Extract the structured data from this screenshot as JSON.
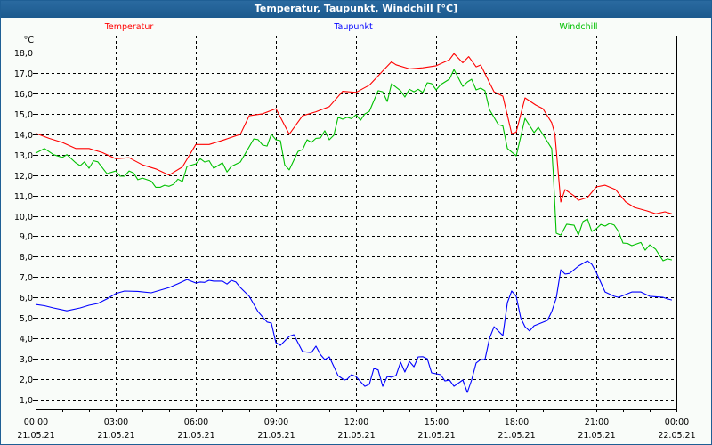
{
  "window": {
    "title": "Temperatur, Taupunkt, Windchill [°C]"
  },
  "chart_data": {
    "type": "line",
    "title": "Temperatur, Taupunkt, Windchill [°C]",
    "ylabel": "°C",
    "xlabel": "",
    "ylim": [
      0.52,
      18.83
    ],
    "xlim_hours": [
      0,
      24
    ],
    "grid": true,
    "legend_placement": "top",
    "y_ticks": [
      1,
      2,
      3,
      4,
      5,
      6,
      7,
      8,
      9,
      10,
      11,
      12,
      13,
      14,
      15,
      16,
      17,
      18
    ],
    "y_tick_labels": [
      "1,0",
      "2,0",
      "3,0",
      "4,0",
      "5,0",
      "6,0",
      "7,0",
      "8,0",
      "9,0",
      "10,0",
      "11,0",
      "12,0",
      "13,0",
      "14,0",
      "15,0",
      "16,0",
      "17,0",
      "18,0"
    ],
    "x_ticks": [
      {
        "hour": 0,
        "time": "00:00",
        "date": "21.05.21"
      },
      {
        "hour": 3,
        "time": "03:00",
        "date": "21.05.21"
      },
      {
        "hour": 6,
        "time": "06:00",
        "date": "21.05.21"
      },
      {
        "hour": 9,
        "time": "09:00",
        "date": "21.05.21"
      },
      {
        "hour": 12,
        "time": "12:00",
        "date": "21.05.21"
      },
      {
        "hour": 15,
        "time": "15:00",
        "date": "21.05.21"
      },
      {
        "hour": 18,
        "time": "18:00",
        "date": "21.05.21"
      },
      {
        "hour": 21,
        "time": "21:00",
        "date": "21.05.21"
      },
      {
        "hour": 24,
        "time": "00:00",
        "date": "22.05.21"
      }
    ],
    "series": [
      {
        "name": "Temperatur",
        "color": "#ff0000",
        "points": [
          [
            0,
            14.05
          ],
          [
            0.5,
            13.8
          ],
          [
            1,
            13.6
          ],
          [
            1.5,
            13.3
          ],
          [
            2,
            13.3
          ],
          [
            2.5,
            13.1
          ],
          [
            3,
            12.8
          ],
          [
            3.5,
            12.85
          ],
          [
            4,
            12.5
          ],
          [
            4.5,
            12.3
          ],
          [
            5,
            12.0
          ],
          [
            5.5,
            12.4
          ],
          [
            6,
            13.5
          ],
          [
            6.5,
            13.5
          ],
          [
            7,
            13.7
          ],
          [
            7.67,
            14.0
          ],
          [
            8,
            14.9
          ],
          [
            8.5,
            15.0
          ],
          [
            9,
            15.25
          ],
          [
            9.5,
            14.0
          ],
          [
            10,
            14.9
          ],
          [
            10.5,
            15.1
          ],
          [
            11,
            15.35
          ],
          [
            11.5,
            16.1
          ],
          [
            12,
            16.05
          ],
          [
            12.5,
            16.4
          ],
          [
            13,
            17.1
          ],
          [
            13.33,
            17.55
          ],
          [
            13.5,
            17.4
          ],
          [
            14,
            17.2
          ],
          [
            14.5,
            17.25
          ],
          [
            15,
            17.35
          ],
          [
            15.5,
            17.65
          ],
          [
            15.67,
            17.95
          ],
          [
            16,
            17.5
          ],
          [
            16.22,
            17.8
          ],
          [
            16.5,
            17.3
          ],
          [
            16.67,
            17.39
          ],
          [
            17.17,
            16.08
          ],
          [
            17.5,
            15.86
          ],
          [
            17.83,
            14.03
          ],
          [
            18,
            14.1
          ],
          [
            18.33,
            15.78
          ],
          [
            18.73,
            15.43
          ],
          [
            19,
            15.25
          ],
          [
            19.33,
            14.56
          ],
          [
            19.45,
            14.0
          ],
          [
            19.67,
            10.68
          ],
          [
            19.83,
            11.29
          ],
          [
            20.17,
            10.98
          ],
          [
            20.33,
            10.76
          ],
          [
            20.67,
            10.9
          ],
          [
            21,
            11.42
          ],
          [
            21.33,
            11.5
          ],
          [
            21.72,
            11.29
          ],
          [
            22.1,
            10.68
          ],
          [
            22.43,
            10.41
          ],
          [
            22.9,
            10.24
          ],
          [
            23.23,
            10.1
          ],
          [
            23.57,
            10.2
          ],
          [
            23.83,
            10.1
          ]
        ]
      },
      {
        "name": "Taupunkt",
        "color": "#0000ff",
        "points": [
          [
            0,
            5.66
          ],
          [
            0.33,
            5.6
          ],
          [
            0.67,
            5.49
          ],
          [
            1.17,
            5.35
          ],
          [
            1.67,
            5.49
          ],
          [
            2,
            5.62
          ],
          [
            2.33,
            5.71
          ],
          [
            2.67,
            5.93
          ],
          [
            3,
            6.19
          ],
          [
            3.33,
            6.32
          ],
          [
            3.83,
            6.3
          ],
          [
            4.33,
            6.23
          ],
          [
            4.67,
            6.36
          ],
          [
            5,
            6.49
          ],
          [
            5.33,
            6.67
          ],
          [
            5.67,
            6.88
          ],
          [
            6,
            6.71
          ],
          [
            6.17,
            6.76
          ],
          [
            6.33,
            6.74
          ],
          [
            6.5,
            6.84
          ],
          [
            6.67,
            6.8
          ],
          [
            7,
            6.8
          ],
          [
            7.17,
            6.66
          ],
          [
            7.33,
            6.84
          ],
          [
            7.5,
            6.76
          ],
          [
            7.67,
            6.49
          ],
          [
            8,
            6.06
          ],
          [
            8.33,
            5.31
          ],
          [
            8.67,
            4.8
          ],
          [
            8.83,
            4.75
          ],
          [
            9,
            3.79
          ],
          [
            9.17,
            3.66
          ],
          [
            9.5,
            4.1
          ],
          [
            9.67,
            4.18
          ],
          [
            10,
            3.35
          ],
          [
            10.33,
            3.3
          ],
          [
            10.5,
            3.62
          ],
          [
            10.67,
            3.2
          ],
          [
            10.83,
            2.96
          ],
          [
            11,
            3.09
          ],
          [
            11.33,
            2.17
          ],
          [
            11.56,
            1.96
          ],
          [
            11.67,
            2.0
          ],
          [
            11.83,
            2.22
          ],
          [
            12,
            2.13
          ],
          [
            12.33,
            1.65
          ],
          [
            12.5,
            1.75
          ],
          [
            12.67,
            2.53
          ],
          [
            12.83,
            2.45
          ],
          [
            13,
            1.65
          ],
          [
            13.17,
            2.13
          ],
          [
            13.33,
            2.1
          ],
          [
            13.5,
            2.18
          ],
          [
            13.67,
            2.83
          ],
          [
            13.83,
            2.35
          ],
          [
            14,
            2.87
          ],
          [
            14.17,
            2.61
          ],
          [
            14.33,
            3.09
          ],
          [
            14.5,
            3.1
          ],
          [
            14.67,
            3.0
          ],
          [
            14.83,
            2.31
          ],
          [
            15.17,
            2.22
          ],
          [
            15.33,
            1.91
          ],
          [
            15.5,
            1.96
          ],
          [
            15.67,
            1.65
          ],
          [
            16,
            1.96
          ],
          [
            16.17,
            1.35
          ],
          [
            16.33,
            1.96
          ],
          [
            16.5,
            2.79
          ],
          [
            16.67,
            2.96
          ],
          [
            16.83,
            2.96
          ],
          [
            17,
            4.0
          ],
          [
            17.17,
            4.57
          ],
          [
            17.5,
            4.14
          ],
          [
            17.67,
            5.75
          ],
          [
            17.83,
            6.32
          ],
          [
            18,
            6.06
          ],
          [
            18.17,
            5.0
          ],
          [
            18.33,
            4.57
          ],
          [
            18.5,
            4.36
          ],
          [
            18.67,
            4.62
          ],
          [
            18.83,
            4.7
          ],
          [
            19.17,
            4.88
          ],
          [
            19.33,
            5.31
          ],
          [
            19.5,
            5.97
          ],
          [
            19.67,
            7.36
          ],
          [
            19.83,
            7.15
          ],
          [
            20,
            7.18
          ],
          [
            20.33,
            7.54
          ],
          [
            20.67,
            7.8
          ],
          [
            20.83,
            7.63
          ],
          [
            21,
            7.23
          ],
          [
            21.33,
            6.27
          ],
          [
            21.67,
            6.06
          ],
          [
            21.83,
            6.01
          ],
          [
            22.33,
            6.27
          ],
          [
            22.67,
            6.27
          ],
          [
            23,
            6.06
          ],
          [
            23.5,
            6.01
          ],
          [
            23.67,
            5.93
          ],
          [
            23.83,
            5.88
          ]
        ]
      },
      {
        "name": "Windchill",
        "color": "#00c000",
        "points": [
          [
            0,
            13.07
          ],
          [
            0.33,
            13.3
          ],
          [
            0.67,
            13.0
          ],
          [
            1,
            12.86
          ],
          [
            1.17,
            13.0
          ],
          [
            1.5,
            12.6
          ],
          [
            1.67,
            12.46
          ],
          [
            1.83,
            12.65
          ],
          [
            2,
            12.33
          ],
          [
            2.17,
            12.7
          ],
          [
            2.33,
            12.65
          ],
          [
            2.67,
            12.07
          ],
          [
            3,
            12.2
          ],
          [
            3.17,
            11.94
          ],
          [
            3.33,
            11.94
          ],
          [
            3.5,
            12.2
          ],
          [
            3.67,
            12.1
          ],
          [
            3.83,
            11.77
          ],
          [
            4,
            11.85
          ],
          [
            4.33,
            11.7
          ],
          [
            4.5,
            11.4
          ],
          [
            4.67,
            11.4
          ],
          [
            4.83,
            11.5
          ],
          [
            5,
            11.45
          ],
          [
            5.17,
            11.55
          ],
          [
            5.33,
            11.8
          ],
          [
            5.5,
            11.68
          ],
          [
            5.67,
            12.42
          ],
          [
            6,
            12.55
          ],
          [
            6.17,
            12.8
          ],
          [
            6.33,
            12.64
          ],
          [
            6.5,
            12.7
          ],
          [
            6.67,
            12.33
          ],
          [
            7,
            12.6
          ],
          [
            7.17,
            12.15
          ],
          [
            7.33,
            12.42
          ],
          [
            7.67,
            12.64
          ],
          [
            7.83,
            13.0
          ],
          [
            8.17,
            13.77
          ],
          [
            8.33,
            13.74
          ],
          [
            8.5,
            13.47
          ],
          [
            8.67,
            13.42
          ],
          [
            8.83,
            14.0
          ],
          [
            9,
            13.73
          ],
          [
            9.17,
            13.68
          ],
          [
            9.33,
            12.5
          ],
          [
            9.5,
            12.25
          ],
          [
            9.83,
            13.16
          ],
          [
            10,
            13.25
          ],
          [
            10.17,
            13.73
          ],
          [
            10.33,
            13.6
          ],
          [
            10.5,
            13.8
          ],
          [
            10.67,
            13.82
          ],
          [
            10.83,
            14.17
          ],
          [
            11,
            13.73
          ],
          [
            11.17,
            13.95
          ],
          [
            11.33,
            14.83
          ],
          [
            11.5,
            14.73
          ],
          [
            11.67,
            14.83
          ],
          [
            11.83,
            14.76
          ],
          [
            12,
            14.95
          ],
          [
            12.17,
            14.68
          ],
          [
            12.33,
            14.99
          ],
          [
            12.5,
            15.12
          ],
          [
            12.83,
            16.13
          ],
          [
            13,
            16.08
          ],
          [
            13.17,
            15.6
          ],
          [
            13.33,
            16.47
          ],
          [
            13.67,
            16.13
          ],
          [
            13.83,
            15.82
          ],
          [
            14,
            16.2
          ],
          [
            14.17,
            16.08
          ],
          [
            14.33,
            16.2
          ],
          [
            14.5,
            16.04
          ],
          [
            14.67,
            16.52
          ],
          [
            14.83,
            16.48
          ],
          [
            15,
            16.17
          ],
          [
            15.17,
            16.43
          ],
          [
            15.5,
            16.7
          ],
          [
            15.67,
            17.17
          ],
          [
            16,
            16.34
          ],
          [
            16.17,
            16.56
          ],
          [
            16.33,
            16.69
          ],
          [
            16.5,
            16.17
          ],
          [
            16.67,
            16.26
          ],
          [
            16.83,
            16.13
          ],
          [
            17,
            15.2
          ],
          [
            17.33,
            14.47
          ],
          [
            17.5,
            14.4
          ],
          [
            17.67,
            13.3
          ],
          [
            18,
            12.94
          ],
          [
            18.33,
            14.77
          ],
          [
            18.67,
            14.08
          ],
          [
            18.83,
            14.34
          ],
          [
            19.33,
            13.3
          ],
          [
            19.39,
            12.07
          ],
          [
            19.5,
            9.15
          ],
          [
            19.67,
            9.06
          ],
          [
            19.89,
            9.59
          ],
          [
            20.17,
            9.54
          ],
          [
            20.33,
            9.06
          ],
          [
            20.5,
            9.72
          ],
          [
            20.67,
            9.85
          ],
          [
            20.83,
            9.24
          ],
          [
            21,
            9.37
          ],
          [
            21.17,
            9.58
          ],
          [
            21.33,
            9.5
          ],
          [
            21.5,
            9.63
          ],
          [
            21.67,
            9.55
          ],
          [
            21.83,
            9.24
          ],
          [
            22,
            8.67
          ],
          [
            22.17,
            8.65
          ],
          [
            22.33,
            8.54
          ],
          [
            22.67,
            8.7
          ],
          [
            22.83,
            8.32
          ],
          [
            23,
            8.58
          ],
          [
            23.22,
            8.37
          ],
          [
            23.5,
            7.8
          ],
          [
            23.67,
            7.89
          ],
          [
            23.83,
            7.84
          ]
        ]
      }
    ]
  }
}
